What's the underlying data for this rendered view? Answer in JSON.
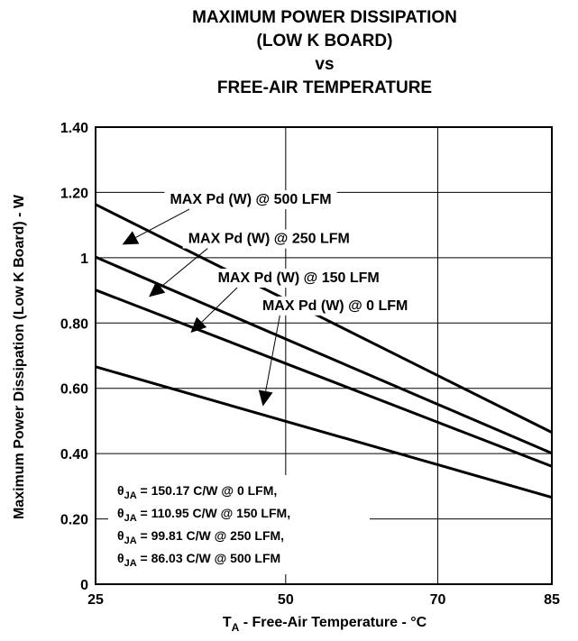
{
  "chart_data": {
    "type": "line",
    "title_lines": [
      "MAXIMUM POWER DISSIPATION",
      "(LOW K BOARD)",
      "vs",
      "FREE-AIR TEMPERATURE"
    ],
    "xlabel_main": "T",
    "xlabel_sub": "A",
    "xlabel_rest": " - Free-Air Temperature - °C",
    "ylabel": "Maximum Power Dissipation (Low K Board) - W",
    "xlim": [
      25,
      85
    ],
    "ylim": [
      0,
      1.4
    ],
    "x_ticks": [
      25,
      50,
      70,
      85
    ],
    "x_tick_labels": [
      "25",
      "50",
      "70",
      "85"
    ],
    "y_ticks": [
      0,
      0.2,
      0.4,
      0.6,
      0.8,
      1.0,
      1.2,
      1.4
    ],
    "y_tick_labels": [
      "0",
      "0.20",
      "0.40",
      "0.60",
      "0.80",
      "1",
      "1.20",
      "1.40"
    ],
    "grid": true,
    "series": [
      {
        "name": "MAX Pd (W) @ 500 LFM",
        "x": [
          25,
          50,
          70,
          85
        ],
        "y": [
          1.163,
          0.872,
          0.639,
          0.465
        ]
      },
      {
        "name": "MAX Pd (W) @ 250 LFM",
        "x": [
          25,
          50,
          70,
          85
        ],
        "y": [
          1.002,
          0.751,
          0.551,
          0.401
        ]
      },
      {
        "name": "MAX Pd (W) @ 150 LFM",
        "x": [
          25,
          50,
          70,
          85
        ],
        "y": [
          0.901,
          0.676,
          0.496,
          0.361
        ]
      },
      {
        "name": "MAX Pd (W) @ 0 LFM",
        "x": [
          25,
          50,
          70,
          85
        ],
        "y": [
          0.666,
          0.499,
          0.366,
          0.266
        ]
      }
    ],
    "annotations": [
      {
        "text": "MAX Pd (W) @ 500 LFM",
        "tx": 45.4,
        "ty": 1.165,
        "series": 0,
        "ax": 28.5,
        "ay": 1.04
      },
      {
        "text": "MAX Pd (W) @ 250 LFM",
        "tx": 47.8,
        "ty": 1.045,
        "series": 1,
        "ax": 32.0,
        "ay": 0.88
      },
      {
        "text": "MAX Pd (W) @ 150 LFM",
        "tx": 51.7,
        "ty": 0.925,
        "series": 2,
        "ax": 37.5,
        "ay": 0.77
      },
      {
        "text": "MAX Pd (W) @ 0 LFM",
        "tx": 56.5,
        "ty": 0.84,
        "series": 3,
        "ax": 47.0,
        "ay": 0.545
      }
    ],
    "theta_notes": [
      {
        "symbol": "θ",
        "sub": "JA",
        "rest": " = 150.17 C/W @ 0 LFM,"
      },
      {
        "symbol": "θ",
        "sub": "JA",
        "rest": " = 110.95 C/W @ 150 LFM,"
      },
      {
        "symbol": "θ",
        "sub": "JA",
        "rest": " = 99.81 C/W @ 250 LFM,"
      },
      {
        "symbol": "θ",
        "sub": "JA",
        "rest": " = 86.03 C/W @ 500 LFM"
      }
    ]
  }
}
